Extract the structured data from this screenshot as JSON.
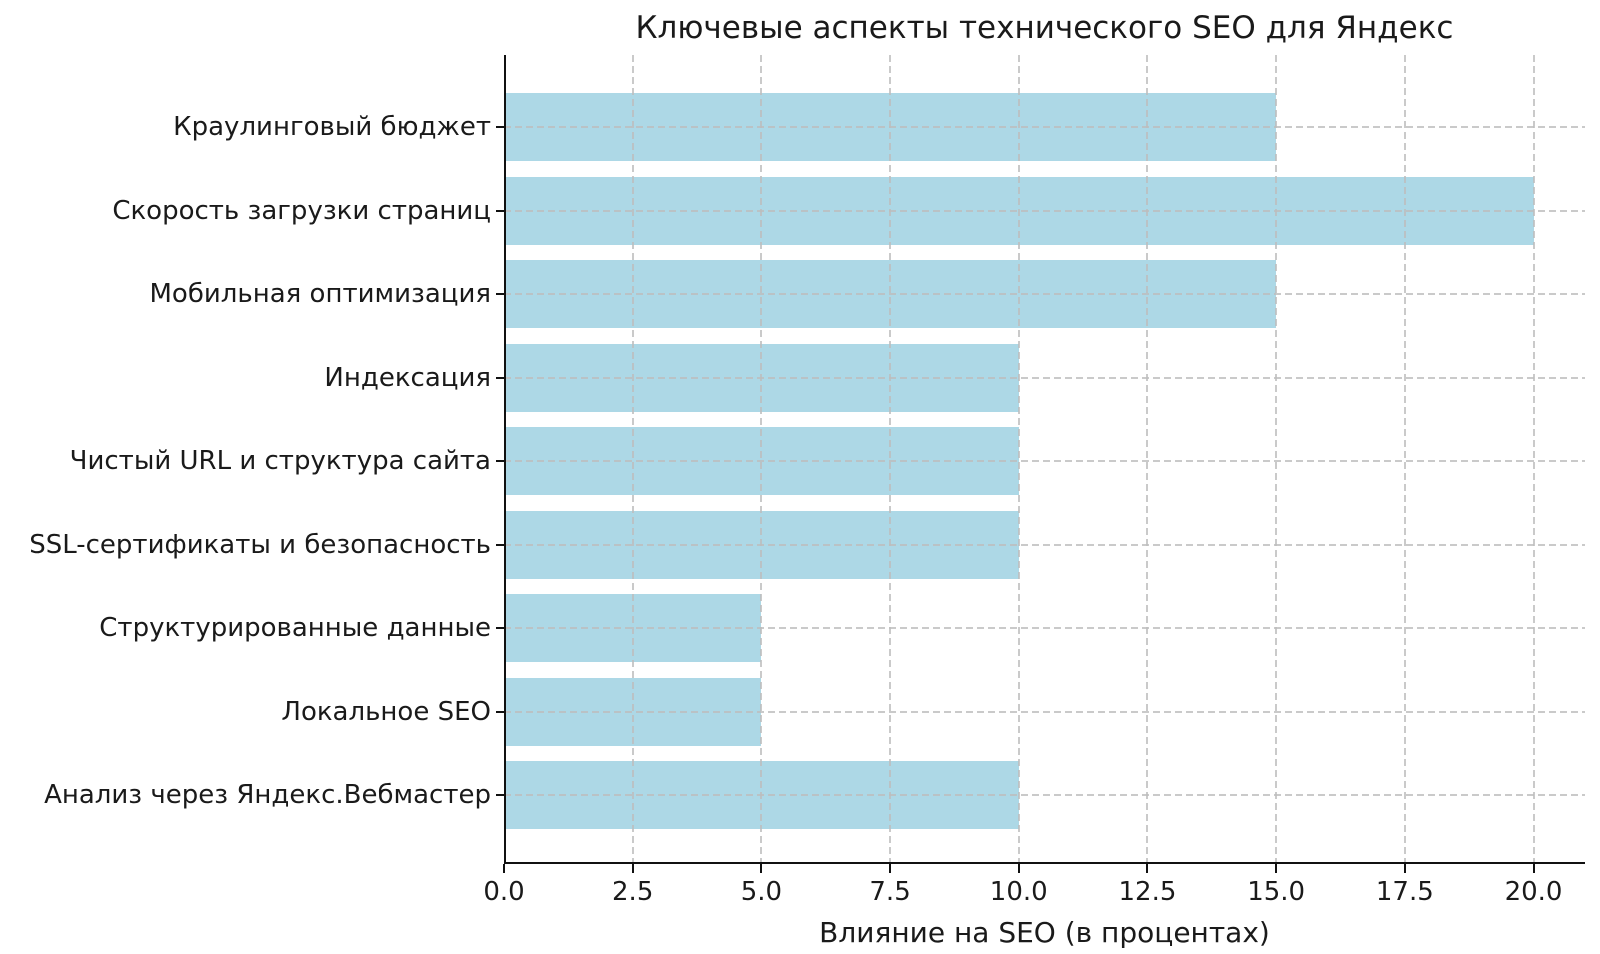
{
  "chart_data": {
    "type": "bar",
    "orientation": "horizontal",
    "title": "Ключевые аспекты технического SEO для Яндекс",
    "xlabel": "Влияние на SEO (в процентах)",
    "ylabel": "",
    "categories": [
      "Краулинговый бюджет",
      "Скорость загрузки страниц",
      "Мобильная оптимизация",
      "Индексация",
      "Чистый URL и структура сайта",
      "SSL-сертификаты и безопасность",
      "Структурированные данные",
      "Локальное SEO",
      "Анализ через Яндекс.Вебмастер"
    ],
    "values": [
      15,
      20,
      15,
      10,
      10,
      10,
      5,
      5,
      10
    ],
    "x_ticks": [
      0,
      2.5,
      5,
      7.5,
      10,
      12.5,
      15,
      17.5,
      20
    ],
    "x_tick_labels": [
      "0.0",
      "2.5",
      "5.0",
      "7.5",
      "10.0",
      "12.5",
      "15.0",
      "17.5",
      "20.0"
    ],
    "xlim": [
      0,
      21
    ],
    "grid": true,
    "grid_linestyle": "dashed",
    "legend_position": "none",
    "colors": {
      "bar": "#ADD8E6",
      "grid": "rgba(189,189,189,0.8)",
      "text": "#1a1a1a",
      "spine": "#111111",
      "background": "#ffffff"
    }
  }
}
